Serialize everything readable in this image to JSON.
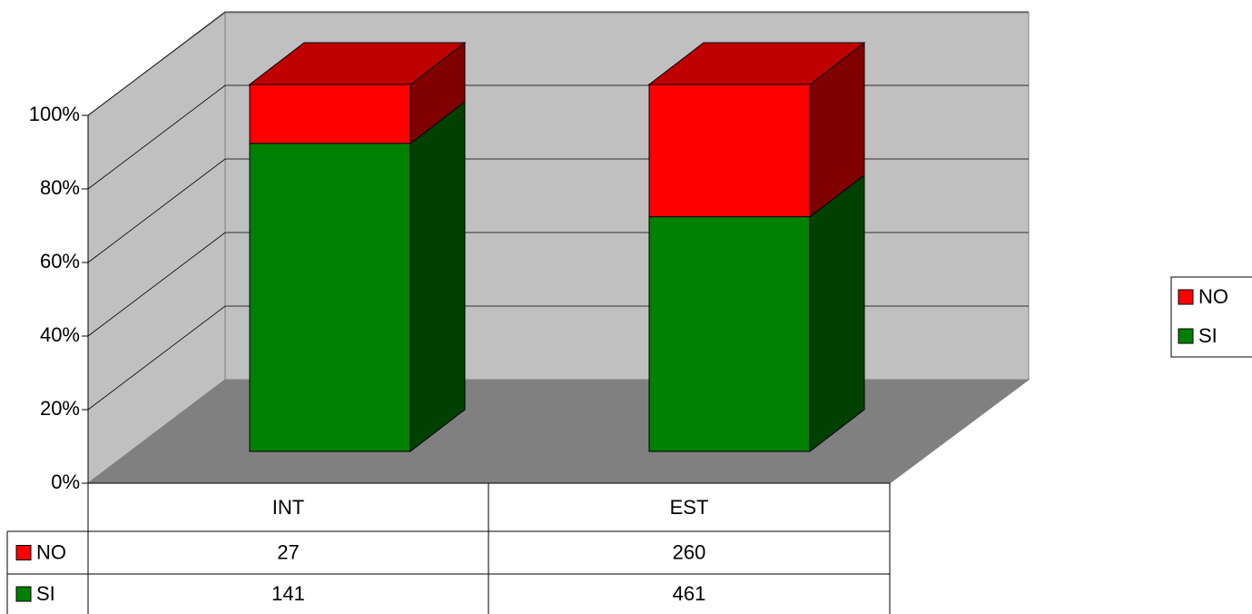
{
  "chart_data": {
    "type": "bar3d_percent_stacked",
    "categories": [
      "INT",
      "EST"
    ],
    "series": [
      {
        "name": "NO",
        "color": "#ff0000",
        "top": "#c00000",
        "side": "#800000",
        "values": [
          27,
          260
        ]
      },
      {
        "name": "SI",
        "color": "#008000",
        "top": "#006000",
        "side": "#004000",
        "values": [
          141,
          461
        ]
      }
    ],
    "ylim": [
      0,
      100
    ],
    "yticks": [
      {
        "value": 0,
        "label": "0%"
      },
      {
        "value": 20,
        "label": "20%"
      },
      {
        "value": 40,
        "label": "40%"
      },
      {
        "value": 60,
        "label": "60%"
      },
      {
        "value": 80,
        "label": "80%"
      },
      {
        "value": 100,
        "label": "100%"
      }
    ],
    "grid": true,
    "legend": "right",
    "data_table": true
  }
}
